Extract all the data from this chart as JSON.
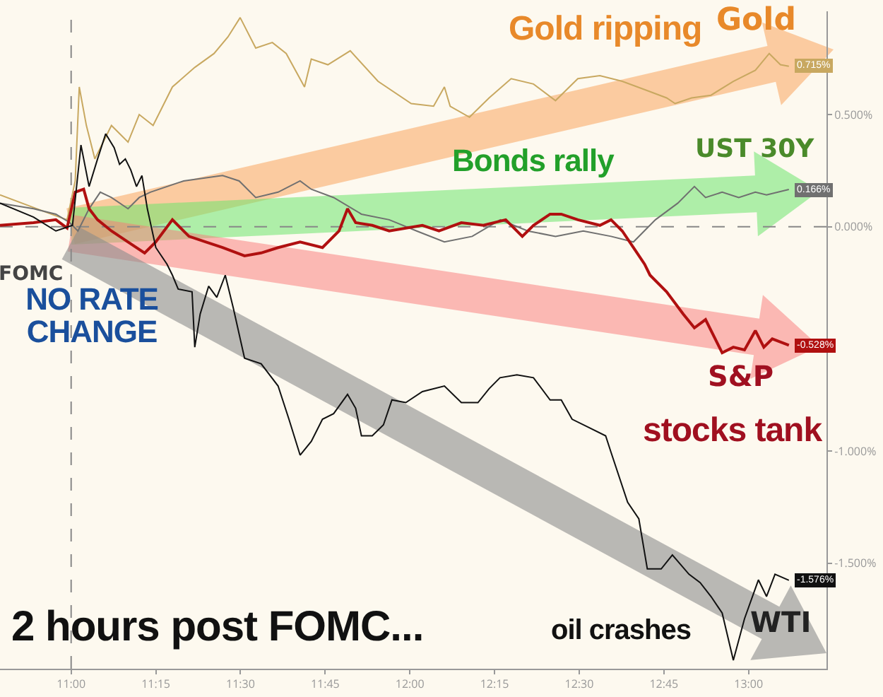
{
  "chart_data": {
    "type": "line",
    "annotations": [
      "Gold ripping",
      "Bonds rally",
      "NO RATE CHANGE",
      "stocks tank",
      "oil crashes",
      "2 hours post FOMC..."
    ],
    "xlim": [
      10.79,
      13.23
    ],
    "xticks": [
      {
        "value": 11,
        "label": "11:00"
      },
      {
        "value": 11.25,
        "label": "11:15"
      },
      {
        "value": 11.5,
        "label": "11:30"
      },
      {
        "value": 11.75,
        "label": "11:45"
      },
      {
        "value": 12,
        "label": "12:00"
      },
      {
        "value": 12.25,
        "label": "12:15"
      },
      {
        "value": 12.5,
        "label": "12:30"
      },
      {
        "value": 12.75,
        "label": "12:45"
      },
      {
        "value": 13,
        "label": "13:00"
      }
    ],
    "ylim": [
      -1.97,
      0.96
    ],
    "yticks": [
      {
        "value": 0.5,
        "label": "0.500%"
      },
      {
        "value": 0,
        "label": "0.000%"
      },
      {
        "value": -1,
        "label": "-1.000%"
      },
      {
        "value": -1.5,
        "label": "-1.500%"
      }
    ],
    "ref_lines": [
      {
        "axis": "y",
        "value": 0,
        "line_style": "dashed",
        "color": "#888888"
      },
      {
        "axis": "x",
        "value": 11,
        "label": "FOMC",
        "line_style": "dashed",
        "color": "#888888"
      }
    ],
    "series": [
      {
        "name": "Gold",
        "color": "#c8a860",
        "x": [
          10.79,
          10.92,
          10.988,
          11.012,
          11.024,
          11.045,
          11.07,
          11.119,
          11.168,
          11.201,
          11.242,
          11.299,
          11.365,
          11.422,
          11.463,
          11.499,
          11.545,
          11.594,
          11.635,
          11.689,
          11.709,
          11.758,
          11.824,
          11.906,
          12.004,
          12.07,
          12.102,
          12.119,
          12.176,
          12.234,
          12.299,
          12.365,
          12.43,
          12.496,
          12.561,
          12.627,
          12.693,
          12.758,
          12.783,
          12.832,
          12.889,
          12.955,
          13.02,
          13.061,
          13.094,
          13.119
        ],
        "values": [
          0.142,
          0.068,
          0.031,
          0.204,
          0.623,
          0.451,
          0.302,
          0.451,
          0.377,
          0.5,
          0.451,
          0.623,
          0.71,
          0.772,
          0.846,
          0.932,
          0.796,
          0.821,
          0.772,
          0.623,
          0.747,
          0.722,
          0.784,
          0.648,
          0.549,
          0.537,
          0.623,
          0.537,
          0.488,
          0.574,
          0.66,
          0.636,
          0.562,
          0.66,
          0.673,
          0.648,
          0.611,
          0.574,
          0.549,
          0.574,
          0.586,
          0.648,
          0.697,
          0.772,
          0.722,
          0.715
        ],
        "value_labels": [
          null,
          null,
          null,
          null,
          null,
          null,
          null,
          null,
          null,
          null,
          null,
          null,
          null,
          null,
          null,
          null,
          null,
          null,
          null,
          null,
          null,
          null,
          null,
          null,
          null,
          null,
          null,
          null,
          null,
          null,
          null,
          null,
          null,
          null,
          null,
          null,
          null,
          null,
          null,
          null,
          null,
          null,
          null,
          null,
          null,
          "0.715%"
        ]
      },
      {
        "name": "UST 30Y",
        "color": "#707070",
        "x": [
          10.79,
          10.889,
          10.955,
          10.996,
          11.02,
          11.053,
          11.086,
          11.119,
          11.168,
          11.201,
          11.234,
          11.332,
          11.447,
          11.496,
          11.545,
          11.611,
          11.676,
          11.709,
          11.775,
          11.857,
          11.939,
          12.02,
          12.102,
          12.184,
          12.267,
          12.348,
          12.43,
          12.512,
          12.594,
          12.66,
          12.725,
          12.791,
          12.84,
          12.873,
          12.922,
          12.971,
          13.02,
          13.053,
          13.119
        ],
        "values": [
          0.105,
          0.08,
          0.056,
          0.018,
          -0.019,
          0.08,
          0.154,
          0.13,
          0.08,
          0.13,
          0.154,
          0.204,
          0.228,
          0.204,
          0.13,
          0.154,
          0.204,
          0.167,
          0.13,
          0.056,
          0.031,
          -0.019,
          -0.068,
          -0.043,
          0.031,
          -0.019,
          -0.043,
          -0.019,
          -0.043,
          -0.068,
          0.031,
          0.105,
          0.179,
          0.13,
          0.154,
          0.13,
          0.154,
          0.142,
          0.166
        ],
        "value_labels": [
          null,
          null,
          null,
          null,
          null,
          null,
          null,
          null,
          null,
          null,
          null,
          null,
          null,
          null,
          null,
          null,
          null,
          null,
          null,
          null,
          null,
          null,
          null,
          null,
          null,
          null,
          null,
          null,
          null,
          null,
          null,
          null,
          null,
          null,
          null,
          null,
          null,
          null,
          "0.166%"
        ]
      },
      {
        "name": "S&P",
        "color": "#b01010",
        "x": [
          10.79,
          10.889,
          10.955,
          10.988,
          11.012,
          11.037,
          11.053,
          11.078,
          11.119,
          11.168,
          11.217,
          11.25,
          11.299,
          11.348,
          11.398,
          11.447,
          11.512,
          11.561,
          11.611,
          11.676,
          11.742,
          11.791,
          11.816,
          11.84,
          11.889,
          11.939,
          12.037,
          12.086,
          12.152,
          12.217,
          12.283,
          12.332,
          12.365,
          12.414,
          12.447,
          12.496,
          12.561,
          12.594,
          12.627,
          12.66,
          12.693,
          12.709,
          12.758,
          12.807,
          12.84,
          12.873,
          12.922,
          12.955,
          12.988,
          13.02,
          13.045,
          13.07,
          13.119
        ],
        "values": [
          0.006,
          0.018,
          0.031,
          -0.006,
          0.154,
          0.167,
          0.08,
          0.031,
          -0.019,
          -0.068,
          -0.117,
          -0.068,
          0.031,
          -0.043,
          -0.068,
          -0.093,
          -0.13,
          -0.117,
          -0.093,
          -0.068,
          -0.093,
          -0.019,
          0.08,
          0.018,
          0.006,
          -0.019,
          0.006,
          -0.019,
          0.018,
          0.006,
          0.031,
          -0.043,
          0.006,
          0.056,
          0.056,
          0.031,
          0.006,
          0.031,
          -0.019,
          -0.093,
          -0.167,
          -0.216,
          -0.29,
          -0.389,
          -0.451,
          -0.414,
          -0.562,
          -0.537,
          -0.549,
          -0.463,
          -0.537,
          -0.5,
          -0.528
        ],
        "value_labels": [
          null,
          null,
          null,
          null,
          null,
          null,
          null,
          null,
          null,
          null,
          null,
          null,
          null,
          null,
          null,
          null,
          null,
          null,
          null,
          null,
          null,
          null,
          null,
          null,
          null,
          null,
          null,
          null,
          null,
          null,
          null,
          null,
          null,
          null,
          null,
          null,
          null,
          null,
          null,
          null,
          null,
          null,
          null,
          null,
          null,
          null,
          null,
          null,
          null,
          null,
          null,
          null,
          "-0.528%"
        ]
      },
      {
        "name": "WTI",
        "color": "#111111",
        "x": [
          10.79,
          10.889,
          10.955,
          11.004,
          11.029,
          11.053,
          11.078,
          11.102,
          11.127,
          11.143,
          11.16,
          11.176,
          11.193,
          11.209,
          11.225,
          11.25,
          11.283,
          11.299,
          11.316,
          11.357,
          11.365,
          11.381,
          11.406,
          11.43,
          11.455,
          11.479,
          11.512,
          11.561,
          11.611,
          11.643,
          11.676,
          11.709,
          11.742,
          11.775,
          11.816,
          11.84,
          11.857,
          11.889,
          11.922,
          11.947,
          11.988,
          12.037,
          12.102,
          12.152,
          12.201,
          12.234,
          12.266,
          12.316,
          12.365,
          12.414,
          12.447,
          12.479,
          12.529,
          12.578,
          12.594,
          12.643,
          12.676,
          12.701,
          12.742,
          12.775,
          12.824,
          12.857,
          12.889,
          12.922,
          12.955,
          12.988,
          13.029,
          13.053,
          13.078,
          13.119
        ],
        "values": [
          0.105,
          0.043,
          -0.019,
          0.006,
          0.364,
          0.179,
          0.302,
          0.414,
          0.352,
          0.278,
          0.302,
          0.253,
          0.179,
          0.228,
          0.08,
          -0.093,
          -0.167,
          -0.216,
          -0.278,
          -0.29,
          -0.537,
          -0.389,
          -0.265,
          -0.315,
          -0.216,
          -0.364,
          -0.586,
          -0.611,
          -0.71,
          -0.858,
          -1.018,
          -0.957,
          -0.858,
          -0.833,
          -0.747,
          -0.809,
          -0.932,
          -0.932,
          -0.883,
          -0.772,
          -0.784,
          -0.735,
          -0.71,
          -0.784,
          -0.784,
          -0.722,
          -0.673,
          -0.66,
          -0.673,
          -0.772,
          -0.772,
          -0.858,
          -0.895,
          -0.932,
          -1.006,
          -1.228,
          -1.302,
          -1.525,
          -1.525,
          -1.463,
          -1.549,
          -1.586,
          -1.648,
          -1.722,
          -1.932,
          -1.747,
          -1.574,
          -1.648,
          -1.549,
          -1.576
        ],
        "value_labels": [
          null,
          null,
          null,
          null,
          null,
          null,
          null,
          null,
          null,
          null,
          null,
          null,
          null,
          null,
          null,
          null,
          null,
          null,
          null,
          null,
          null,
          null,
          null,
          null,
          null,
          null,
          null,
          null,
          null,
          null,
          null,
          null,
          null,
          null,
          null,
          null,
          null,
          null,
          null,
          null,
          null,
          null,
          null,
          null,
          null,
          null,
          null,
          null,
          null,
          null,
          null,
          null,
          null,
          null,
          null,
          null,
          null,
          null,
          null,
          null,
          null,
          null,
          null,
          null,
          null,
          null,
          null,
          null,
          null,
          "-1.576%"
        ]
      }
    ]
  }
}
